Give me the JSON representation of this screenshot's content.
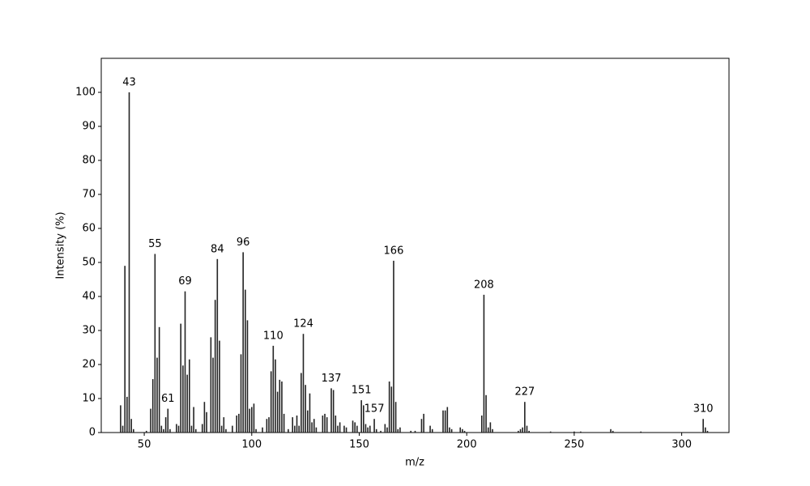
{
  "chart_data": {
    "type": "bar",
    "x_label": "m/z",
    "y_label": "Intensity (%)",
    "xlim": [
      30,
      322
    ],
    "ylim": [
      0,
      110
    ],
    "xticks": [
      50,
      100,
      150,
      200,
      250,
      300
    ],
    "yticks": [
      0,
      10,
      20,
      30,
      40,
      50,
      60,
      70,
      80,
      90,
      100
    ],
    "grid": false,
    "color": "#222222",
    "x": [
      39,
      40,
      41,
      42,
      43,
      44,
      45,
      51,
      53,
      54,
      55,
      56,
      57,
      58,
      59,
      60,
      61,
      62,
      65,
      66,
      67,
      68,
      69,
      70,
      71,
      72,
      73,
      74,
      77,
      78,
      79,
      81,
      82,
      83,
      84,
      85,
      86,
      87,
      88,
      91,
      93,
      94,
      95,
      96,
      97,
      98,
      99,
      100,
      101,
      102,
      105,
      107,
      108,
      109,
      110,
      111,
      112,
      113,
      114,
      115,
      117,
      119,
      120,
      121,
      122,
      123,
      124,
      125,
      126,
      127,
      128,
      129,
      130,
      133,
      134,
      135,
      137,
      138,
      139,
      140,
      141,
      143,
      144,
      147,
      148,
      149,
      151,
      152,
      153,
      154,
      155,
      157,
      158,
      160,
      162,
      163,
      164,
      165,
      166,
      167,
      168,
      169,
      174,
      176,
      179,
      180,
      183,
      184,
      189,
      190,
      191,
      192,
      193,
      197,
      198,
      199,
      207,
      208,
      209,
      210,
      211,
      212,
      224,
      225,
      226,
      227,
      228,
      229,
      239,
      250,
      253,
      267,
      268,
      281,
      310,
      311,
      312
    ],
    "values": [
      8,
      2,
      49,
      10.5,
      100,
      4,
      1,
      0.5,
      7,
      15.7,
      52.5,
      22,
      31,
      2,
      1,
      4.5,
      7,
      1,
      2.5,
      2,
      32,
      19.7,
      41.5,
      17,
      21.5,
      2,
      7.5,
      1,
      2.5,
      9,
      6,
      28,
      22,
      39,
      51,
      27,
      2,
      4.5,
      1,
      2,
      5,
      5.5,
      23,
      53,
      42,
      33,
      7,
      7.5,
      8.5,
      1,
      1.5,
      4,
      4.5,
      18,
      25.5,
      21.5,
      12,
      15.5,
      15,
      5.5,
      1,
      4.5,
      2,
      5,
      2,
      17.5,
      29,
      14,
      6.5,
      11.5,
      3,
      4,
      1.5,
      5,
      5.5,
      4.5,
      13,
      12.5,
      5,
      2,
      3,
      2,
      1.5,
      3.5,
      3,
      2,
      9.5,
      8,
      2.5,
      1.5,
      2,
      4,
      1,
      0.5,
      2.5,
      1.5,
      15,
      13.5,
      50.5,
      9,
      1,
      1.5,
      0.5,
      0.5,
      4,
      5.5,
      2,
      1,
      6.5,
      6.5,
      7.5,
      1.5,
      1,
      1.5,
      1,
      0.5,
      5,
      40.5,
      11,
      1.5,
      3,
      1,
      0.5,
      1,
      1.5,
      9,
      2,
      0.5,
      0.3,
      0.3,
      0.3,
      1,
      0.5,
      0.3,
      4,
      1.5,
      0.5
    ],
    "annotations": [
      {
        "x": 43,
        "label": "43"
      },
      {
        "x": 55,
        "label": "55"
      },
      {
        "x": 61,
        "label": "61"
      },
      {
        "x": 69,
        "label": "69"
      },
      {
        "x": 84,
        "label": "84"
      },
      {
        "x": 96,
        "label": "96"
      },
      {
        "x": 110,
        "label": "110"
      },
      {
        "x": 124,
        "label": "124"
      },
      {
        "x": 137,
        "label": "137"
      },
      {
        "x": 151,
        "label": "151"
      },
      {
        "x": 157,
        "label": "157"
      },
      {
        "x": 166,
        "label": "166"
      },
      {
        "x": 208,
        "label": "208"
      },
      {
        "x": 227,
        "label": "227"
      },
      {
        "x": 310,
        "label": "310"
      }
    ]
  }
}
